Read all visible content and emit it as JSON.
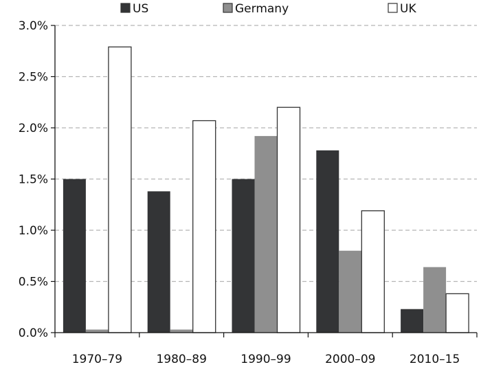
{
  "chart_data": {
    "type": "bar",
    "categories": [
      "1970–79",
      "1980–89",
      "1990–99",
      "2000–09",
      "2010–15"
    ],
    "series": [
      {
        "name": "US",
        "values": [
          1.5,
          1.38,
          1.5,
          1.78,
          0.23
        ],
        "color": "#333436"
      },
      {
        "name": "Germany",
        "values": [
          0.03,
          0.03,
          1.92,
          0.8,
          0.64
        ],
        "color": "#8f8f8f"
      },
      {
        "name": "UK",
        "values": [
          2.79,
          2.07,
          2.2,
          1.19,
          0.38
        ],
        "color": "#ffffff"
      }
    ],
    "y_ticks": [
      "0.0%",
      "0.5%",
      "1.0%",
      "1.5%",
      "2.0%",
      "2.5%",
      "3.0%"
    ],
    "y_tick_values": [
      0,
      0.5,
      1.0,
      1.5,
      2.0,
      2.5,
      3.0
    ],
    "ylim": [
      0,
      3.0
    ],
    "grid": true,
    "legend_position": "top"
  }
}
